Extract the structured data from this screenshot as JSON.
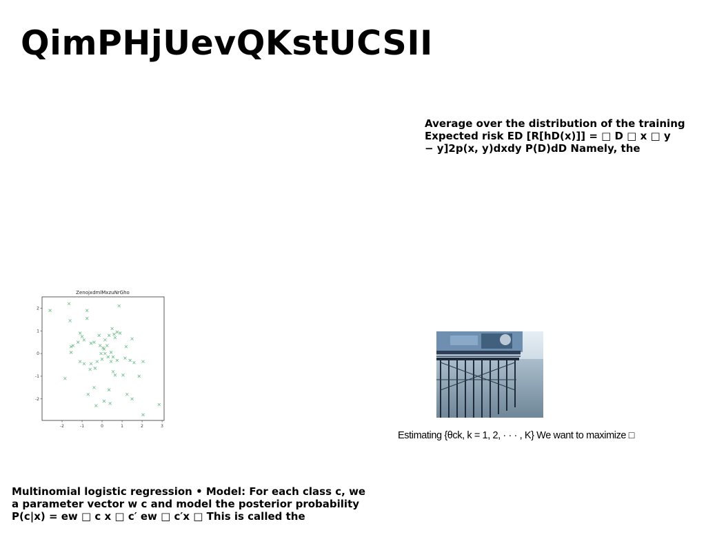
{
  "slide": {
    "title": "QimPHjUevQKstUCSII",
    "right_text": [
      "Average over the distribution of the training",
      "Expected risk ED [R[hD(x)]] = □ D □ x □ y",
      "− y]2p(x, y)dxdy P(D)dD Namely, the"
    ],
    "bottom_text": [
      "Multinomial logistic regression • Model: For each class c, we",
      "a parameter vector w c and model the posterior probability",
      "P(c|x) = ew □ c x □ c′ ew □ c′x □ This is called the"
    ],
    "photo_caption": "Estimating {θck, k = 1, 2, · · · , K} We want to maximize □"
  },
  "chart_data": {
    "type": "scatter",
    "title": "ZenojxdmlMxzuNrGho",
    "xlabel": "",
    "ylabel": "",
    "xlim": [
      -3.0,
      3.1
    ],
    "ylim": [
      -2.95,
      2.5
    ],
    "xticks": [
      "-2",
      "-1",
      "0",
      "1",
      "2",
      "3"
    ],
    "yticks": [
      "2",
      "1",
      "0",
      "-1",
      "-2"
    ],
    "marker": "x",
    "color": "#4caf6e",
    "points": [
      [
        -2.6,
        1.9
      ],
      [
        -1.65,
        2.2
      ],
      [
        -1.6,
        1.45
      ],
      [
        -0.75,
        1.9
      ],
      [
        -0.75,
        1.55
      ],
      [
        0.85,
        2.1
      ],
      [
        -1.55,
        0.3
      ],
      [
        -1.45,
        0.35
      ],
      [
        -1.55,
        0.05
      ],
      [
        -1.2,
        0.5
      ],
      [
        -1.1,
        0.9
      ],
      [
        -1.0,
        0.75
      ],
      [
        -0.9,
        0.6
      ],
      [
        -0.55,
        0.45
      ],
      [
        -0.4,
        0.5
      ],
      [
        -0.15,
        0.8
      ],
      [
        -0.1,
        0.35
      ],
      [
        0.1,
        0.2
      ],
      [
        0.15,
        0.6
      ],
      [
        0.35,
        0.8
      ],
      [
        0.5,
        1.1
      ],
      [
        0.6,
        0.85
      ],
      [
        0.65,
        0.7
      ],
      [
        0.75,
        0.95
      ],
      [
        0.9,
        0.9
      ],
      [
        1.2,
        0.3
      ],
      [
        1.5,
        0.65
      ],
      [
        -1.1,
        -0.35
      ],
      [
        -0.9,
        -0.45
      ],
      [
        -0.55,
        -0.45
      ],
      [
        -0.35,
        -0.65
      ],
      [
        -0.25,
        -0.35
      ],
      [
        0.0,
        -0.25
      ],
      [
        0.15,
        0.0
      ],
      [
        0.05,
        0.25
      ],
      [
        -0.05,
        0.0
      ],
      [
        0.3,
        -0.15
      ],
      [
        0.45,
        -0.35
      ],
      [
        0.55,
        -0.8
      ],
      [
        0.65,
        -0.95
      ],
      [
        0.75,
        -0.3
      ],
      [
        1.05,
        -0.95
      ],
      [
        1.15,
        -0.2
      ],
      [
        1.4,
        -0.3
      ],
      [
        1.6,
        -0.4
      ],
      [
        1.85,
        -1.0
      ],
      [
        2.05,
        -0.35
      ],
      [
        -1.85,
        -1.1
      ],
      [
        -0.6,
        -0.7
      ],
      [
        -0.4,
        -1.5
      ],
      [
        -0.7,
        -1.8
      ],
      [
        0.1,
        -2.1
      ],
      [
        0.35,
        -1.6
      ],
      [
        0.4,
        -2.2
      ],
      [
        1.25,
        -1.8
      ],
      [
        1.5,
        -2.0
      ],
      [
        2.05,
        -2.7
      ],
      [
        2.85,
        -2.25
      ],
      [
        -0.3,
        -2.3
      ],
      [
        0.55,
        -0.15
      ],
      [
        0.25,
        0.35
      ],
      [
        0.45,
        0.05
      ]
    ]
  }
}
